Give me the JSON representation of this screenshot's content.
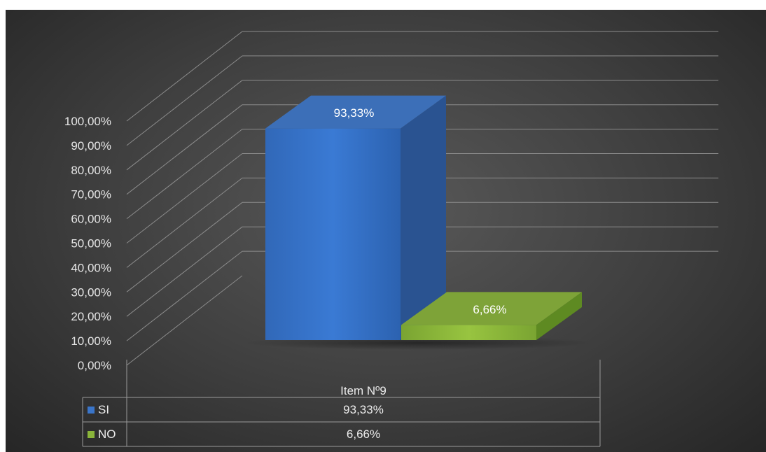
{
  "chart_data": {
    "type": "bar",
    "categories": [
      "Item Nº9"
    ],
    "series": [
      {
        "name": "SI",
        "values": [
          93.33
        ],
        "label": "93,33%",
        "color": "#3a75c9"
      },
      {
        "name": "NO",
        "values": [
          6.66
        ],
        "label": "6,66%",
        "color": "#8ab43a"
      }
    ],
    "ylim": [
      0,
      100
    ],
    "y_ticks": [
      "0,00%",
      "10,00%",
      "20,00%",
      "30,00%",
      "40,00%",
      "50,00%",
      "60,00%",
      "70,00%",
      "80,00%",
      "90,00%",
      "100,00%"
    ],
    "grid": true,
    "three_d": true,
    "legend_placement": "data-table-below",
    "background": "#3f3f3f"
  }
}
